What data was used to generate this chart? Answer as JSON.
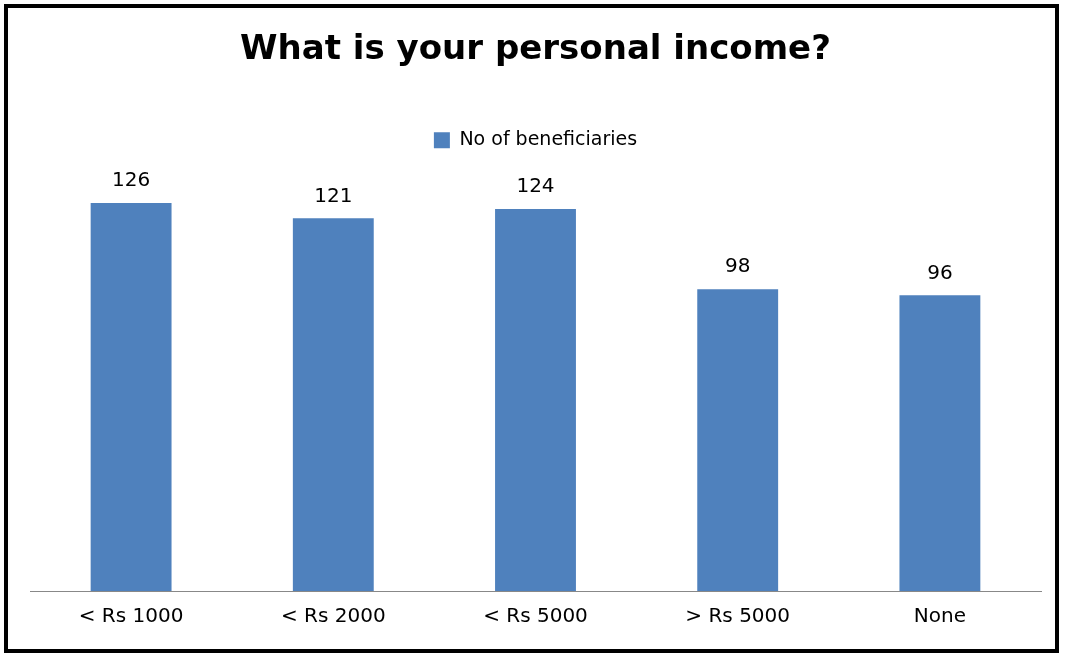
{
  "chart_data": {
    "type": "bar",
    "title": "What is your personal income?",
    "categories": [
      "< Rs 1000",
      "< Rs 2000",
      "< Rs 5000",
      "> Rs 5000",
      "None"
    ],
    "series": [
      {
        "name": "No of beneficiaries",
        "color": "#4f81bd",
        "values": [
          126,
          121,
          124,
          98,
          96
        ]
      }
    ],
    "data_labels": true,
    "legend": "top",
    "grid": false
  }
}
